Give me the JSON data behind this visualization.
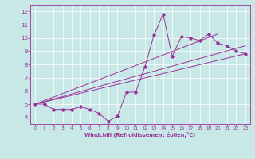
{
  "xlabel": "Windchill (Refroidissement éolien,°C)",
  "bg_color": "#c8e8e8",
  "line_color": "#993399",
  "xlim": [
    -0.5,
    23.5
  ],
  "ylim": [
    3.5,
    12.5
  ],
  "xticks": [
    0,
    1,
    2,
    3,
    4,
    5,
    6,
    7,
    8,
    9,
    10,
    11,
    12,
    13,
    14,
    15,
    16,
    17,
    18,
    19,
    20,
    21,
    22,
    23
  ],
  "yticks": [
    4,
    5,
    6,
    7,
    8,
    9,
    10,
    11,
    12
  ],
  "series": [
    [
      0,
      5.0
    ],
    [
      1,
      5.0
    ],
    [
      2,
      4.6
    ],
    [
      3,
      4.6
    ],
    [
      4,
      4.6
    ],
    [
      5,
      4.8
    ],
    [
      6,
      4.6
    ],
    [
      7,
      4.3
    ],
    [
      8,
      3.7
    ],
    [
      9,
      4.1
    ],
    [
      10,
      5.9
    ],
    [
      11,
      5.9
    ],
    [
      12,
      7.8
    ],
    [
      13,
      10.2
    ],
    [
      14,
      11.8
    ],
    [
      15,
      8.6
    ],
    [
      16,
      10.1
    ],
    [
      17,
      10.0
    ],
    [
      18,
      9.8
    ],
    [
      19,
      10.3
    ],
    [
      20,
      9.6
    ],
    [
      21,
      9.4
    ],
    [
      22,
      9.0
    ],
    [
      23,
      8.8
    ]
  ],
  "straight_lines": [
    [
      [
        0,
        5.0
      ],
      [
        23,
        8.8
      ]
    ],
    [
      [
        0,
        5.0
      ],
      [
        23,
        9.4
      ]
    ],
    [
      [
        0,
        5.0
      ],
      [
        20,
        10.3
      ]
    ]
  ]
}
